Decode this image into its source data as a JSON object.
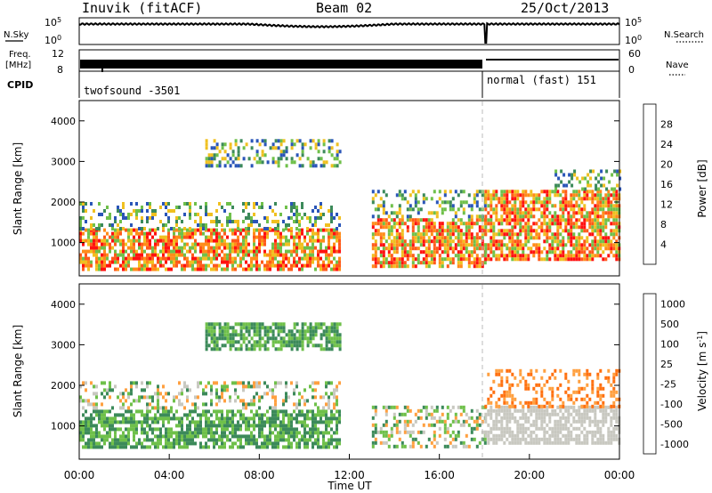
{
  "header": {
    "station": "Inuvik (fitACF)",
    "beam": "Beam 02",
    "date": "25/Oct/2013"
  },
  "top_panels": {
    "nsky_label": "N.Sky",
    "nsearch_label": "N.Search",
    "freq_label_1": "Freq.",
    "freq_label_2": "[MHz]",
    "nave_label": "Nave",
    "cpid_label": "CPID",
    "noise_ticks": [
      "10^5",
      "10^0"
    ],
    "freq_ticks": [
      "12",
      "8"
    ],
    "nave_ticks": [
      "60",
      "0"
    ],
    "cpid_segments": [
      {
        "label": "twofsound -3501",
        "start_hour": 0,
        "end_hour": 18.0
      },
      {
        "label": "normal (fast) 151",
        "start_hour": 18.0,
        "end_hour": 24
      }
    ]
  },
  "chart_data": [
    {
      "type": "heatmap",
      "name": "power",
      "xlabel": "",
      "ylabel": "Slant Range [km]",
      "xlim": [
        0,
        24
      ],
      "ylim": [
        180,
        4500
      ],
      "yticks": [
        1000,
        2000,
        3000,
        4000
      ],
      "colorbar": {
        "label": "Power [dB]",
        "ticks": [
          4,
          8,
          12,
          16,
          20,
          24,
          28
        ],
        "range": [
          0,
          32
        ],
        "colors": [
          "#1a1aff",
          "#2a55b8",
          "#3c8a5a",
          "#6fc04a",
          "#f0c020",
          "#ff8c1a",
          "#ff5a1a",
          "#ff1010"
        ]
      },
      "regions": [
        {
          "h0": 0.0,
          "h1": 11.6,
          "r0": 380,
          "r1": 1350,
          "level": "high"
        },
        {
          "h0": 0.0,
          "h1": 11.6,
          "r0": 1350,
          "r1": 2000,
          "level": "mid"
        },
        {
          "h0": 5.6,
          "h1": 11.6,
          "r0": 2900,
          "r1": 3550,
          "level": "mid"
        },
        {
          "h0": 13.0,
          "h1": 18.0,
          "r0": 450,
          "r1": 1600,
          "level": "high"
        },
        {
          "h0": 13.0,
          "h1": 18.0,
          "r0": 1600,
          "r1": 2300,
          "level": "mid"
        },
        {
          "h0": 18.0,
          "h1": 24.0,
          "r0": 600,
          "r1": 2300,
          "level": "high"
        },
        {
          "h0": 21.0,
          "h1": 24.0,
          "r0": 2300,
          "r1": 2800,
          "level": "mid"
        }
      ]
    },
    {
      "type": "heatmap",
      "name": "velocity",
      "xlabel": "Time UT",
      "ylabel": "Slant Range [km]",
      "xlim": [
        0,
        24
      ],
      "ylim": [
        180,
        4500
      ],
      "xticks": [
        "00:00",
        "04:00",
        "08:00",
        "12:00",
        "16:00",
        "20:00",
        "00:00"
      ],
      "yticks": [
        1000,
        2000,
        3000,
        4000
      ],
      "colorbar": {
        "label": "Velocity [m s^-1]",
        "ticks": [
          1000,
          500,
          100,
          25,
          -25,
          -100,
          -500,
          -1000
        ],
        "colors": [
          "#2040c0",
          "#3a70b0",
          "#3c8a5a",
          "#6fc04a",
          "#c8c8c0",
          "#ffa040",
          "#ff7010",
          "#ff1010"
        ]
      },
      "regions": [
        {
          "h0": 0.0,
          "h1": 11.6,
          "r0": 450,
          "r1": 1400,
          "level": "pos"
        },
        {
          "h0": 0.0,
          "h1": 11.6,
          "r0": 1400,
          "r1": 2100,
          "level": "mixed"
        },
        {
          "h0": 5.6,
          "h1": 11.6,
          "r0": 2900,
          "r1": 3550,
          "level": "pos"
        },
        {
          "h0": 13.0,
          "h1": 18.0,
          "r0": 450,
          "r1": 1500,
          "level": "mixed"
        },
        {
          "h0": 18.0,
          "h1": 24.0,
          "r0": 600,
          "r1": 1500,
          "level": "zero"
        },
        {
          "h0": 18.0,
          "h1": 24.0,
          "r0": 1500,
          "r1": 2400,
          "level": "neg"
        }
      ]
    }
  ]
}
